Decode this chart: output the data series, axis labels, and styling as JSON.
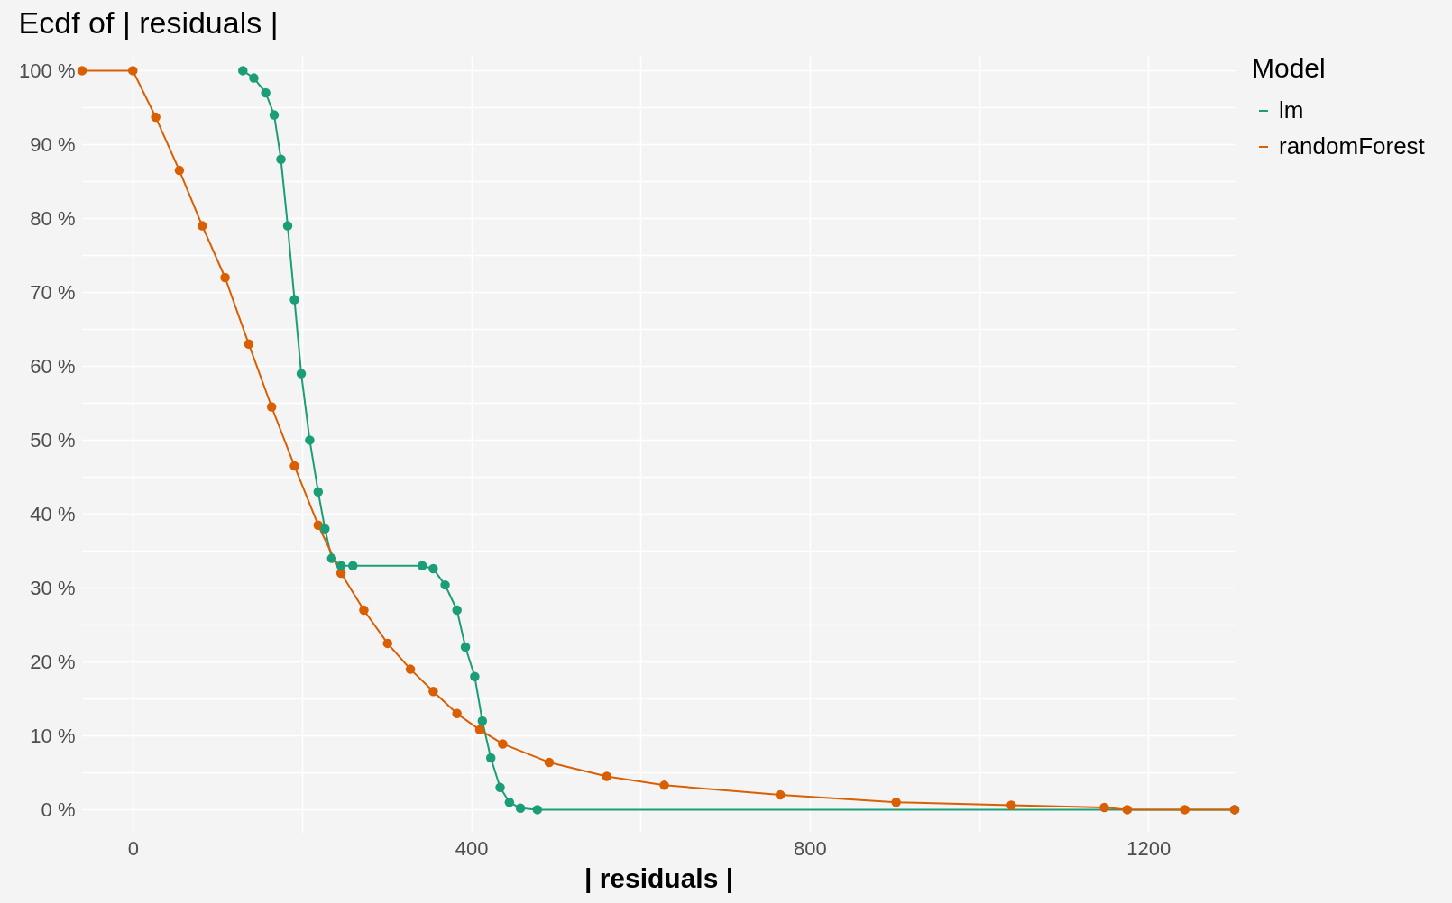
{
  "chart_data": {
    "type": "line",
    "title": "Ecdf of | residuals |",
    "xlabel": "| residuals |",
    "legend_title": "Model",
    "legend": "right",
    "grid": true,
    "marker": "circle",
    "line_style": "solid",
    "xlim": [
      -60,
      1302
    ],
    "xticks": [
      0,
      {
        "value": 200,
        "label": null
      },
      400,
      {
        "value": 600,
        "label": null
      },
      800,
      {
        "value": 1000,
        "label": null
      },
      1200
    ],
    "ylim": [
      -3,
      102
    ],
    "yticks": [
      {
        "value": 0,
        "label": "0 %"
      },
      {
        "value": 5,
        "label": null
      },
      {
        "value": 10,
        "label": "10 %"
      },
      {
        "value": 15,
        "label": null
      },
      {
        "value": 20,
        "label": "20 %"
      },
      {
        "value": 25,
        "label": null
      },
      {
        "value": 30,
        "label": "30 %"
      },
      {
        "value": 35,
        "label": null
      },
      {
        "value": 40,
        "label": "40 %"
      },
      {
        "value": 45,
        "label": null
      },
      {
        "value": 50,
        "label": "50 %"
      },
      {
        "value": 55,
        "label": null
      },
      {
        "value": 60,
        "label": "60 %"
      },
      {
        "value": 65,
        "label": null
      },
      {
        "value": 70,
        "label": "70 %"
      },
      {
        "value": 75,
        "label": null
      },
      {
        "value": 80,
        "label": "80 %"
      },
      {
        "value": 85,
        "label": null
      },
      {
        "value": 90,
        "label": "90 %"
      },
      {
        "value": 95,
        "label": null
      },
      {
        "value": 100,
        "label": "100 %"
      }
    ],
    "series": [
      {
        "name": "lm",
        "color": "#1b9e77",
        "x": [
          130,
          143,
          157,
          167,
          175,
          183,
          191,
          199,
          209,
          219,
          227,
          235,
          246,
          260,
          342,
          355,
          369,
          383,
          393,
          404,
          413,
          423,
          434,
          445,
          458,
          478,
          1302
        ],
        "values": [
          100,
          99,
          97,
          94,
          88,
          79,
          69,
          59,
          50,
          43,
          38,
          34,
          33,
          33,
          33,
          32.6,
          30.4,
          27,
          22,
          18,
          12,
          7,
          3,
          1,
          0.2,
          0,
          0
        ]
      },
      {
        "name": "randomForest",
        "color": "#d95f02",
        "x": [
          -60,
          0,
          27,
          55,
          82,
          109,
          137,
          164,
          191,
          219,
          246,
          273,
          301,
          328,
          355,
          383,
          410,
          437,
          492,
          560,
          628,
          765,
          902,
          1038,
          1148,
          1175,
          1243,
          1302
        ],
        "values": [
          100,
          100,
          93.7,
          86.5,
          79,
          72,
          63,
          54.5,
          46.5,
          38.5,
          32,
          27,
          22.5,
          19,
          16,
          13,
          10.8,
          8.9,
          6.4,
          4.5,
          3.3,
          2,
          1,
          0.6,
          0.3,
          0,
          0,
          0
        ]
      }
    ]
  }
}
